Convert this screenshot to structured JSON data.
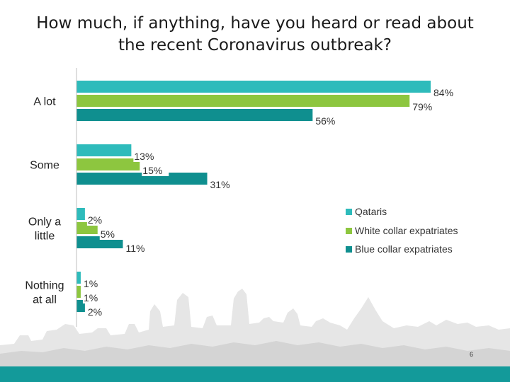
{
  "title_lines": [
    "How much, if anything, have you heard or read about",
    "the recent Coronavirus outbreak?"
  ],
  "page_number": "6",
  "chart_data": {
    "type": "bar",
    "orientation": "horizontal",
    "title": "How much, if anything, have you heard or read about the recent Coronavirus outbreak?",
    "categories": [
      "A lot",
      "Some",
      "Only a little",
      "Nothing at all"
    ],
    "series": [
      {
        "name": "Qataris",
        "values": [
          84,
          13,
          2,
          1
        ],
        "labels": [
          "84%",
          "13%",
          "2%",
          "1%"
        ],
        "color": "#2ebbbb"
      },
      {
        "name": "White collar expatriates",
        "values": [
          79,
          15,
          5,
          1
        ],
        "labels": [
          "79%",
          "15%",
          "5%",
          "1%"
        ],
        "color": "#8dc63f"
      },
      {
        "name": "Blue collar expatriates",
        "values": [
          56,
          31,
          11,
          2
        ],
        "labels": [
          "56%",
          "31%",
          "11%",
          "2%"
        ],
        "color": "#0f8f8f"
      }
    ],
    "value_unit": "%",
    "xlim": [
      0,
      84
    ],
    "legend_position": "right",
    "grid": false
  }
}
